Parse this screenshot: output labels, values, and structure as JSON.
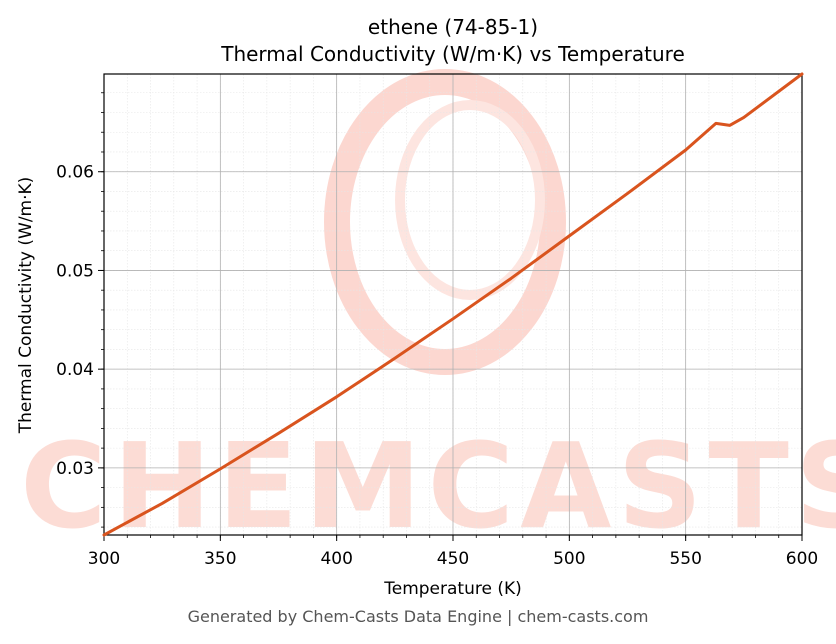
{
  "chart_data": {
    "type": "line",
    "title": "ethene (74-85-1)",
    "subtitle": "Thermal Conductivity (W/m·K) vs Temperature",
    "xlabel": "Temperature (K)",
    "ylabel": "Thermal Conductivity (W/m·K)",
    "xlim": [
      300,
      600
    ],
    "ylim": [
      0.0232,
      0.0699
    ],
    "x_ticks": [
      300,
      350,
      400,
      450,
      500,
      550,
      600
    ],
    "x_tick_labels": [
      "300",
      "350",
      "400",
      "450",
      "500",
      "550",
      "600"
    ],
    "y_ticks": [
      0.03,
      0.04,
      0.05,
      0.06
    ],
    "y_tick_labels": [
      "0.03",
      "0.04",
      "0.05",
      "0.06"
    ],
    "grid": true,
    "legend": "none",
    "series": [
      {
        "color": "#d9541e",
        "x": [
          300,
          325,
          350,
          375,
          400,
          425,
          450,
          475,
          500,
          525,
          550,
          563,
          566,
          569,
          575,
          600
        ],
        "y": [
          0.0232,
          0.0264,
          0.0299,
          0.0335,
          0.0372,
          0.0411,
          0.0451,
          0.0492,
          0.0535,
          0.0578,
          0.0622,
          0.0649,
          0.0648,
          0.0647,
          0.0655,
          0.0699
        ]
      }
    ]
  },
  "watermark": {
    "text": "CHEMCASTS",
    "color": "#fbd9d2"
  },
  "footer": {
    "text": "Generated by Chem-Casts Data Engine | chem-casts.com"
  }
}
